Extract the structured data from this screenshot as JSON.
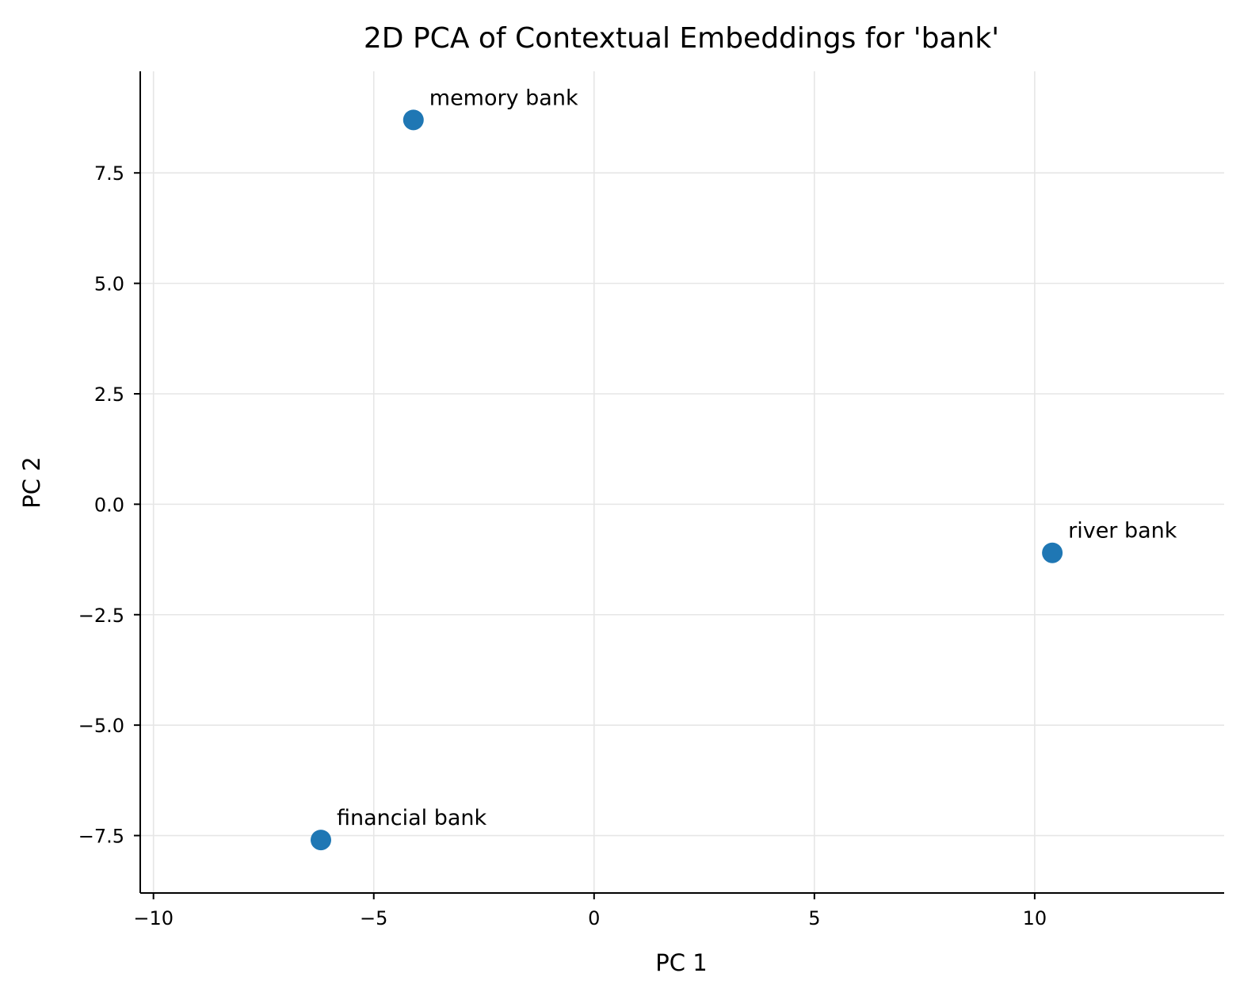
{
  "chart_data": {
    "type": "scatter",
    "title": "2D PCA of Contextual Embeddings for 'bank'",
    "xlabel": "PC 1",
    "ylabel": "PC 2",
    "xlim": [
      -10.3,
      14.3
    ],
    "ylim": [
      -8.8,
      9.8
    ],
    "xticks": [
      -10,
      -5,
      0,
      5,
      10
    ],
    "xtick_labels": [
      "−10",
      "−5",
      "0",
      "5",
      "10"
    ],
    "yticks": [
      -7.5,
      -5.0,
      -2.5,
      0.0,
      2.5,
      5.0,
      7.5
    ],
    "ytick_labels": [
      "−7.5",
      "−5.0",
      "−2.5",
      "0.0",
      "2.5",
      "5.0",
      "7.5"
    ],
    "grid": true,
    "marker_color": "#1f77b4",
    "points": [
      {
        "label": "memory bank",
        "x": -4.1,
        "y": 8.7
      },
      {
        "label": "river bank",
        "x": 10.4,
        "y": -1.1
      },
      {
        "label": "financial bank",
        "x": -6.2,
        "y": -7.6
      }
    ]
  }
}
